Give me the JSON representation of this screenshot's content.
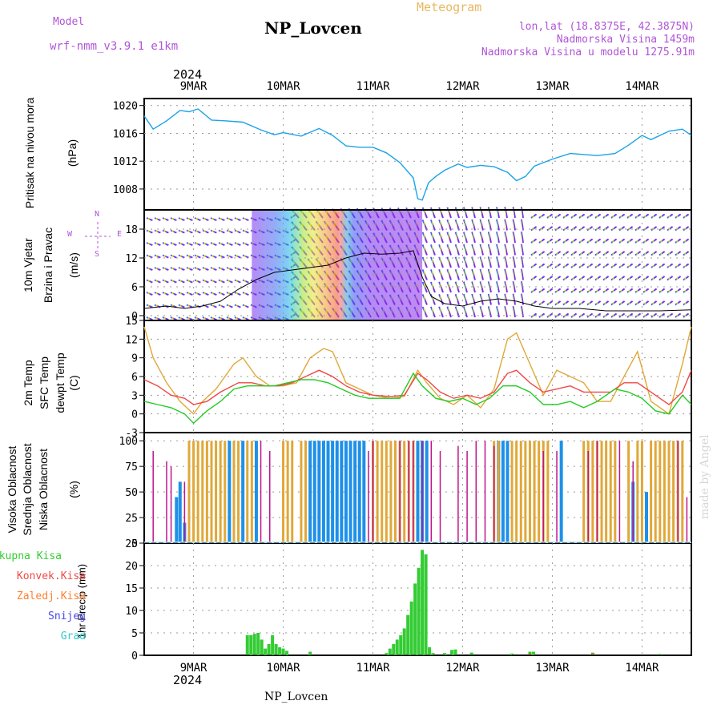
{
  "header": {
    "model_label": "Model",
    "model_name": "wrf-nmm_v3.9.1 e1km",
    "station_title": "NP_Lovcen",
    "product": "Meteogram",
    "coords": "lon,lat (18.8375E, 42.3875N)",
    "elevation": "Nadmorska Visina 1459m",
    "model_elevation": "Nadmorska Visina u modelu 1275.91m",
    "year": "2024",
    "bottom_title": "NP_Lovcen",
    "credit": "made by Angel"
  },
  "colors": {
    "pressure": "#1aa3e8",
    "temp2m": "#f04848",
    "sfc": "#e0a838",
    "dewpt": "#22cc22",
    "high_cloud": "#1e90e8",
    "mid_cloud": "#e0a838",
    "low_cloud": "#c0148c",
    "total_precip": "#33cc33",
    "conv_precip": "#f04848",
    "frz_precip": "#ff8030",
    "snow": "#4848e8",
    "graupel": "#30c8c8",
    "violet": "#b055d8"
  },
  "labels": {
    "pressure": [
      "Pritisak na nivou mora",
      "(hPa)"
    ],
    "wind": [
      "10m Vjetar",
      "Brzina i Pravac",
      "(m/s)"
    ],
    "wind_legend": [
      "N",
      "E",
      "W",
      "S"
    ],
    "temp": [
      "2m Temp",
      "SFC Temp",
      "dewpt Temp",
      "(C)"
    ],
    "cloud": [
      "Visoka Oblacnost",
      "Srednja Oblacnost",
      "Niska Oblacnost",
      "(%)"
    ],
    "precip_legend": [
      "Ukupna Kisa",
      "Konvek.Kisa",
      "Zaledj.Kisa",
      "Snijeg",
      "Grad"
    ],
    "precip_unit": "1hr Precip (mm)"
  },
  "time_axis": {
    "start_day": 8.45,
    "end_day": 14.55,
    "ticks": [
      {
        "day": 9,
        "label": "9MAR"
      },
      {
        "day": 10,
        "label": "10MAR"
      },
      {
        "day": 11,
        "label": "11MAR"
      },
      {
        "day": 12,
        "label": "12MAR"
      },
      {
        "day": 13,
        "label": "13MAR"
      },
      {
        "day": 14,
        "label": "14MAR"
      }
    ]
  },
  "chart_data": [
    {
      "type": "line",
      "ylim": [
        1005,
        1021
      ],
      "yticks": [
        1008,
        1012,
        1016,
        1020
      ],
      "series": [
        {
          "name": "Pritisak na nivou mora",
          "x": [
            8.45,
            8.55,
            8.7,
            8.85,
            8.95,
            9.05,
            9.2,
            9.35,
            9.55,
            9.75,
            9.9,
            10.0,
            10.2,
            10.4,
            10.55,
            10.7,
            10.85,
            11.0,
            11.15,
            11.3,
            11.45,
            11.5,
            11.55,
            11.62,
            11.7,
            11.8,
            11.95,
            12.05,
            12.2,
            12.35,
            12.5,
            12.6,
            12.7,
            12.8,
            13.0,
            13.2,
            13.5,
            13.7,
            13.85,
            14.0,
            14.1,
            14.3,
            14.45,
            14.55
          ],
          "y": [
            1018.5,
            1016.6,
            1017.8,
            1019.3,
            1019.1,
            1019.5,
            1017.9,
            1017.8,
            1017.6,
            1016.5,
            1015.8,
            1016.1,
            1015.6,
            1016.7,
            1015.7,
            1014.2,
            1014.0,
            1014.0,
            1013.2,
            1011.8,
            1009.6,
            1006.6,
            1006.4,
            1008.9,
            1009.8,
            1010.7,
            1011.6,
            1011.1,
            1011.4,
            1011.2,
            1010.4,
            1009.2,
            1009.8,
            1011.3,
            1012.3,
            1013.1,
            1012.8,
            1013.1,
            1014.3,
            1015.7,
            1015.1,
            1016.3,
            1016.6,
            1015.7
          ]
        }
      ]
    },
    {
      "type": "line",
      "ylim": [
        -1,
        22
      ],
      "yticks": [
        0,
        6,
        12,
        18
      ],
      "series": [
        {
          "name": "10m Vjetar",
          "x": [
            8.45,
            8.7,
            8.9,
            9.1,
            9.3,
            9.5,
            9.7,
            9.9,
            10.1,
            10.3,
            10.5,
            10.7,
            10.9,
            11.1,
            11.3,
            11.45,
            11.55,
            11.65,
            11.8,
            12.0,
            12.2,
            12.4,
            12.6,
            12.8,
            13.0,
            13.3,
            13.6,
            13.9,
            14.2,
            14.55
          ],
          "y": [
            1.5,
            2.0,
            1.5,
            2.0,
            3.0,
            5.5,
            7.5,
            9.0,
            9.5,
            10.0,
            10.5,
            12.0,
            13.0,
            12.8,
            13.0,
            13.5,
            8.0,
            4.0,
            2.5,
            2.0,
            3.0,
            3.5,
            3.0,
            2.0,
            1.5,
            1.5,
            1.0,
            1.0,
            1.0,
            1.2
          ]
        }
      ]
    },
    {
      "type": "line",
      "ylim": [
        -3,
        15
      ],
      "yticks": [
        -3,
        0,
        3,
        6,
        9,
        12,
        15
      ],
      "series": [
        {
          "name": "2m Temp",
          "x": [
            8.45,
            8.6,
            8.75,
            8.9,
            9.0,
            9.15,
            9.3,
            9.5,
            9.65,
            9.8,
            9.95,
            10.1,
            10.25,
            10.4,
            10.55,
            10.7,
            10.85,
            11.0,
            11.2,
            11.35,
            11.5,
            11.6,
            11.75,
            11.9,
            12.05,
            12.2,
            12.35,
            12.5,
            12.6,
            12.75,
            12.9,
            13.05,
            13.2,
            13.35,
            13.5,
            13.65,
            13.8,
            13.95,
            14.1,
            14.3,
            14.45,
            14.55
          ],
          "y": [
            5.5,
            4.5,
            3.0,
            2.5,
            1.5,
            2.0,
            3.5,
            5.0,
            5.0,
            4.5,
            4.5,
            5.0,
            6.0,
            7.0,
            6.0,
            4.5,
            3.5,
            3.0,
            2.8,
            3.0,
            6.5,
            5.5,
            3.5,
            2.5,
            3.0,
            2.5,
            3.5,
            6.5,
            7.0,
            5.0,
            3.5,
            4.0,
            4.5,
            3.5,
            3.5,
            3.5,
            5.0,
            5.0,
            3.5,
            1.5,
            3.5,
            7.0
          ]
        },
        {
          "name": "SFC Temp",
          "x": [
            8.45,
            8.55,
            8.7,
            8.85,
            9.0,
            9.1,
            9.25,
            9.45,
            9.55,
            9.7,
            9.85,
            10.0,
            10.15,
            10.3,
            10.45,
            10.55,
            10.7,
            10.85,
            11.0,
            11.2,
            11.35,
            11.5,
            11.6,
            11.75,
            11.9,
            12.05,
            12.2,
            12.35,
            12.5,
            12.6,
            12.75,
            12.9,
            13.05,
            13.2,
            13.35,
            13.5,
            13.65,
            13.8,
            13.95,
            14.1,
            14.3,
            14.45,
            14.55
          ],
          "y": [
            14,
            9,
            5,
            2,
            0,
            2,
            4,
            8,
            9,
            6,
            4.5,
            4.5,
            5,
            9,
            10.5,
            10,
            5,
            4,
            3,
            2.5,
            2.8,
            7,
            5,
            2.5,
            1.5,
            3,
            1,
            4,
            12,
            13,
            8,
            3,
            7,
            6,
            5,
            2,
            2,
            6,
            10,
            2,
            0,
            8,
            14
          ]
        },
        {
          "name": "dewpt Temp",
          "x": [
            8.45,
            8.6,
            8.75,
            8.9,
            9.0,
            9.15,
            9.3,
            9.45,
            9.6,
            9.75,
            9.9,
            10.05,
            10.2,
            10.35,
            10.5,
            10.65,
            10.8,
            10.95,
            11.1,
            11.3,
            11.45,
            11.55,
            11.7,
            11.85,
            12.0,
            12.15,
            12.3,
            12.45,
            12.6,
            12.75,
            12.9,
            13.05,
            13.2,
            13.35,
            13.5,
            13.7,
            13.85,
            14.0,
            14.15,
            14.3,
            14.45,
            14.55
          ],
          "y": [
            2.0,
            1.5,
            1.0,
            0,
            -1.5,
            0.5,
            2.0,
            4.0,
            4.5,
            4.5,
            4.5,
            5.0,
            5.5,
            5.5,
            5.0,
            4.0,
            3.0,
            2.5,
            2.5,
            2.5,
            6.5,
            4.5,
            2.5,
            2.0,
            2.5,
            1.5,
            2.5,
            4.5,
            4.5,
            3.5,
            1.5,
            1.5,
            2.0,
            1.0,
            2.0,
            4.0,
            3.5,
            2.5,
            0.5,
            0.0,
            3.0,
            1.5
          ]
        }
      ]
    },
    {
      "type": "bar",
      "ylim": [
        0,
        100
      ],
      "yticks": [
        0,
        25,
        50,
        75,
        100
      ],
      "series": [
        {
          "name": "Visoka Oblacnost",
          "x": [
            8.81,
            8.85,
            8.9,
            9.4,
            9.55,
            9.7,
            10.3,
            10.35,
            10.4,
            10.45,
            10.5,
            10.55,
            10.6,
            10.65,
            10.7,
            10.75,
            10.8,
            10.85,
            10.9,
            11.5,
            11.55,
            11.6,
            12.4,
            12.45,
            12.5,
            13.1,
            13.9,
            14.05
          ],
          "y": [
            45,
            60,
            20,
            100,
            100,
            100,
            100,
            100,
            100,
            100,
            100,
            100,
            100,
            100,
            100,
            100,
            100,
            100,
            100,
            100,
            100,
            100,
            100,
            100,
            100,
            100,
            60,
            50
          ]
        },
        {
          "name": "Srednja Oblacnost",
          "x": [
            8.95,
            9.0,
            9.05,
            9.1,
            9.15,
            9.2,
            9.25,
            9.3,
            9.35,
            9.45,
            9.5,
            9.6,
            9.65,
            10.0,
            10.05,
            10.1,
            10.2,
            10.25,
            11.0,
            11.05,
            11.1,
            11.15,
            11.2,
            11.25,
            11.3,
            11.35,
            11.4,
            11.45,
            12.35,
            12.4,
            12.55,
            12.6,
            12.65,
            12.7,
            12.75,
            12.8,
            12.85,
            12.9,
            12.95,
            13.35,
            13.4,
            13.45,
            13.5,
            13.55,
            13.6,
            13.65,
            13.7,
            13.85,
            13.95,
            14.0,
            14.1,
            14.15,
            14.2,
            14.25,
            14.3,
            14.35,
            14.4,
            14.45
          ],
          "y": [
            100,
            100,
            100,
            100,
            100,
            100,
            100,
            100,
            100,
            100,
            100,
            100,
            100,
            100,
            100,
            100,
            100,
            100,
            100,
            100,
            100,
            100,
            100,
            100,
            100,
            100,
            100,
            100,
            100,
            100,
            100,
            100,
            100,
            100,
            100,
            100,
            100,
            100,
            100,
            100,
            100,
            100,
            100,
            100,
            100,
            100,
            100,
            100,
            100,
            100,
            100,
            100,
            100,
            100,
            100,
            100,
            100,
            100
          ]
        },
        {
          "name": "Niska Oblacnost",
          "x": [
            8.55,
            8.7,
            8.75,
            8.9,
            9.75,
            9.85,
            10.95,
            11.0,
            11.3,
            11.4,
            11.45,
            11.55,
            11.65,
            11.75,
            11.95,
            12.05,
            12.15,
            12.25,
            12.35,
            12.9,
            13.05,
            13.4,
            13.5,
            13.75,
            13.9,
            14.4,
            14.5
          ],
          "y": [
            90,
            80,
            75,
            60,
            100,
            90,
            90,
            100,
            100,
            100,
            100,
            100,
            100,
            90,
            95,
            90,
            100,
            100,
            95,
            90,
            90,
            90,
            100,
            100,
            80,
            100,
            45
          ]
        }
      ]
    },
    {
      "type": "bar",
      "ylim": [
        0,
        25
      ],
      "yticks": [
        0,
        5,
        10,
        15,
        20,
        25
      ],
      "series": [
        {
          "name": "Ukupna Kisa",
          "x": [
            9.6,
            9.64,
            9.68,
            9.72,
            9.76,
            9.8,
            9.84,
            9.88,
            9.92,
            9.96,
            10.0,
            10.04,
            10.3,
            11.15,
            11.19,
            11.23,
            11.27,
            11.31,
            11.35,
            11.39,
            11.43,
            11.47,
            11.51,
            11.55,
            11.59,
            11.63,
            11.67,
            11.8,
            11.88,
            11.92,
            12.1,
            12.55,
            12.75,
            12.79,
            13.45,
            14.2
          ],
          "y": [
            4.5,
            4.5,
            4.8,
            5,
            3.5,
            1.5,
            2.5,
            4.5,
            2.5,
            1.8,
            1.5,
            1.0,
            0.8,
            0.5,
            1.5,
            2.5,
            3.5,
            4.5,
            6,
            9,
            12,
            16,
            19.5,
            23.5,
            22.5,
            1.8,
            0.5,
            0.5,
            1.2,
            1.3,
            0.6,
            0.4,
            0.8,
            0.8,
            0.6,
            0.3
          ]
        },
        {
          "name": "Konvek.Kisa",
          "x": [
            12.75,
            13.45
          ],
          "y": [
            0.3,
            0.3
          ]
        }
      ]
    }
  ]
}
